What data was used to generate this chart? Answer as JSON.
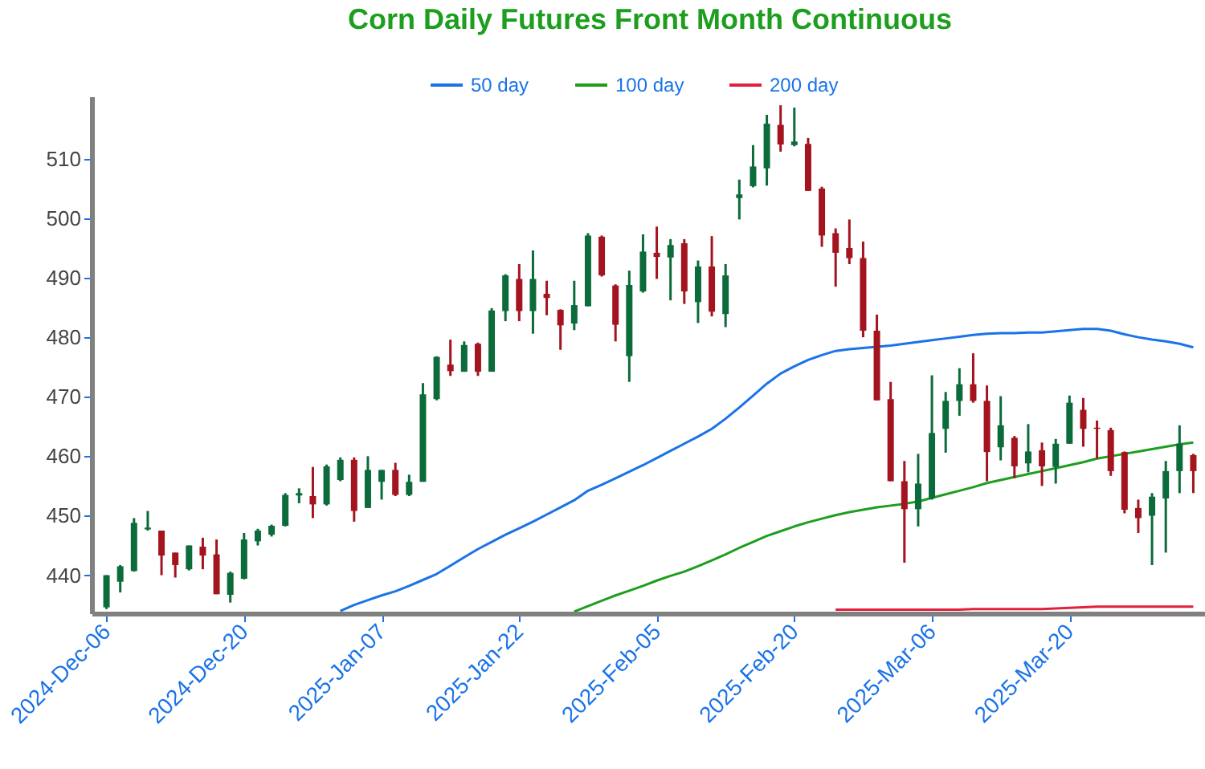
{
  "chart_data": {
    "type": "candlestick",
    "title": "Corn Daily Futures Front Month Continuous",
    "categories": [
      "2024-Dec-06",
      null,
      null,
      null,
      null,
      null,
      null,
      null,
      null,
      null,
      "2024-Dec-20",
      null,
      null,
      null,
      null,
      null,
      null,
      null,
      null,
      null,
      "2025-Jan-07",
      null,
      null,
      null,
      null,
      null,
      null,
      null,
      null,
      null,
      "2025-Jan-22",
      null,
      null,
      null,
      null,
      null,
      null,
      null,
      null,
      null,
      "2025-Feb-05",
      null,
      null,
      null,
      null,
      null,
      null,
      null,
      null,
      null,
      "2025-Feb-20",
      null,
      null,
      null,
      null,
      null,
      null,
      null,
      null,
      null,
      "2025-Mar-06",
      null,
      null,
      null,
      null,
      null,
      null,
      null,
      null,
      null,
      "2025-Mar-20",
      null,
      null,
      null,
      null,
      null,
      null,
      null,
      null,
      null
    ],
    "ohlc": [
      [
        434.6,
        440,
        434.3,
        440
      ],
      [
        438.9,
        441.7,
        437.1,
        441.5
      ],
      [
        440.7,
        449.6,
        440.6,
        448.8
      ],
      [
        447.7,
        450.8,
        447.5,
        448
      ],
      [
        447.5,
        447.5,
        440,
        443.3
      ],
      [
        443.8,
        443.8,
        439.6,
        441.7
      ],
      [
        441,
        445,
        440.8,
        445
      ],
      [
        444.8,
        446.3,
        441,
        443.3
      ],
      [
        443.5,
        446,
        436.8,
        436.8
      ],
      [
        436.7,
        440.6,
        435.4,
        440.4
      ],
      [
        439.4,
        447.1,
        439.3,
        446
      ],
      [
        445.7,
        447.8,
        445,
        447.5
      ],
      [
        446.8,
        448.5,
        446.5,
        448.3
      ],
      [
        448.3,
        453.8,
        448.2,
        453.5
      ],
      [
        453.4,
        454.6,
        452.1,
        453.8
      ],
      [
        453.3,
        458.2,
        449.6,
        451.9
      ],
      [
        451.9,
        458.6,
        451.7,
        458.3
      ],
      [
        456,
        459.8,
        455.8,
        459.4
      ],
      [
        459.4,
        459.8,
        449,
        450.8
      ],
      [
        451.3,
        460,
        451.3,
        457.7
      ],
      [
        455.7,
        457.7,
        452.7,
        457.7
      ],
      [
        457.7,
        458.9,
        453.3,
        453.5
      ],
      [
        453.5,
        456.9,
        453.3,
        455.7
      ],
      [
        455.7,
        472.3,
        455.7,
        470.4
      ],
      [
        469.6,
        476.8,
        469.4,
        476.7
      ],
      [
        475.4,
        479.6,
        473.5,
        474.3
      ],
      [
        474.2,
        479.3,
        474.2,
        478.7
      ],
      [
        478.9,
        479.1,
        473.5,
        474.2
      ],
      [
        474.2,
        484.9,
        474.2,
        484.5
      ],
      [
        484.4,
        490.6,
        482.7,
        490.4
      ],
      [
        489.8,
        492.3,
        482.7,
        484.4
      ],
      [
        484.4,
        494.6,
        480.6,
        489.8
      ],
      [
        487.3,
        489.5,
        483.7,
        486.6
      ],
      [
        484.6,
        484.7,
        477.9,
        482
      ],
      [
        482.3,
        489.5,
        481.2,
        485.4
      ],
      [
        485.2,
        497.5,
        485.2,
        497.1
      ],
      [
        496.9,
        497.1,
        490.2,
        490.4
      ],
      [
        488.7,
        488.9,
        479.3,
        482.1
      ],
      [
        476.8,
        491.2,
        472.5,
        488.8
      ],
      [
        487.7,
        497.3,
        487.5,
        494.4
      ],
      [
        494.2,
        498.6,
        489.8,
        493.5
      ],
      [
        493.4,
        496.5,
        486.2,
        495.5
      ],
      [
        495.8,
        496.5,
        485.6,
        487.7
      ],
      [
        485.9,
        492.9,
        482.4,
        491.9
      ],
      [
        491.9,
        497,
        483.5,
        484.3
      ],
      [
        483.9,
        492.3,
        481.7,
        490.4
      ],
      [
        503.4,
        506.5,
        499.8,
        504
      ],
      [
        505.4,
        512.3,
        505.2,
        508.7
      ],
      [
        508.4,
        517.4,
        505.5,
        515.9
      ],
      [
        515.7,
        519,
        511.2,
        512.4
      ],
      [
        512.3,
        518.6,
        512.1,
        512.9
      ],
      [
        512.5,
        513.5,
        504.6,
        504.6
      ],
      [
        505,
        505.3,
        495.2,
        497.1
      ],
      [
        497.5,
        498.3,
        488.5,
        494.2
      ],
      [
        495,
        499.8,
        492.3,
        493.3
      ],
      [
        493.3,
        496.1,
        480,
        481.1
      ],
      [
        481.1,
        483.8,
        469.4,
        469.4
      ],
      [
        469.6,
        472.5,
        455.8,
        455.8
      ],
      [
        455.8,
        459.2,
        442.1,
        451.1
      ],
      [
        451.1,
        460.4,
        448.2,
        455.4
      ],
      [
        452.9,
        473.6,
        452.7,
        463.9
      ],
      [
        464.6,
        470.8,
        460.6,
        469.3
      ],
      [
        469.3,
        474.8,
        466.8,
        472.1
      ],
      [
        472.1,
        477.3,
        469,
        469.3
      ],
      [
        469.3,
        471.9,
        455.8,
        460.7
      ],
      [
        461.5,
        470.1,
        459.3,
        465.2
      ],
      [
        463.1,
        463.4,
        456.3,
        458.3
      ],
      [
        458.8,
        465.4,
        457.3,
        460.8
      ],
      [
        461,
        462.3,
        455,
        458.3
      ],
      [
        458.2,
        462.9,
        455.4,
        462.1
      ],
      [
        462.1,
        470.2,
        462.1,
        469
      ],
      [
        467.8,
        469.8,
        461.6,
        464.6
      ],
      [
        464.8,
        466,
        459.6,
        464.6
      ],
      [
        464.4,
        464.8,
        456.7,
        457.5
      ],
      [
        460.7,
        460.8,
        450.4,
        451
      ],
      [
        451.3,
        452.7,
        447.1,
        449.6
      ],
      [
        450,
        453.8,
        441.7,
        453.2
      ],
      [
        452.9,
        459.2,
        443.8,
        457.5
      ],
      [
        457.5,
        465.2,
        453.8,
        462.1
      ],
      [
        460.2,
        460.4,
        453.8,
        457.5
      ]
    ],
    "colors": [
      "#0b6b3a",
      "#0b6b3a",
      "#0b6b3a",
      "#0b6b3a",
      "#a3141f",
      "#a3141f",
      "#0b6b3a",
      "#a3141f",
      "#a3141f",
      "#0b6b3a",
      "#0b6b3a",
      "#0b6b3a",
      "#0b6b3a",
      "#0b6b3a",
      "#0b6b3a",
      "#a3141f",
      "#0b6b3a",
      "#0b6b3a",
      "#a3141f",
      "#0b6b3a",
      "#0b6b3a",
      "#a3141f",
      "#0b6b3a",
      "#0b6b3a",
      "#0b6b3a",
      "#a3141f",
      "#0b6b3a",
      "#a3141f",
      "#0b6b3a",
      "#0b6b3a",
      "#a3141f",
      "#0b6b3a",
      "#a3141f",
      "#a3141f",
      "#0b6b3a",
      "#0b6b3a",
      "#a3141f",
      "#a3141f",
      "#0b6b3a",
      "#0b6b3a",
      "#a3141f",
      "#0b6b3a",
      "#a3141f",
      "#0b6b3a",
      "#a3141f",
      "#0b6b3a",
      "#0b6b3a",
      "#0b6b3a",
      "#0b6b3a",
      "#a3141f",
      "#0b6b3a",
      "#a3141f",
      "#a3141f",
      "#a3141f",
      "#a3141f",
      "#a3141f",
      "#a3141f",
      "#a3141f",
      "#a3141f",
      "#0b6b3a",
      "#0b6b3a",
      "#0b6b3a",
      "#0b6b3a",
      "#a3141f",
      "#a3141f",
      "#0b6b3a",
      "#a3141f",
      "#0b6b3a",
      "#a3141f",
      "#0b6b3a",
      "#0b6b3a",
      "#a3141f",
      "#a3141f",
      "#a3141f",
      "#a3141f",
      "#a3141f",
      "#0b6b3a",
      "#0b6b3a",
      "#0b6b3a",
      "#a3141f"
    ],
    "series": [
      {
        "name": "50 day",
        "type": "line",
        "color": "#1a73e8",
        "values": [
          null,
          null,
          null,
          null,
          null,
          null,
          null,
          null,
          null,
          null,
          null,
          null,
          null,
          null,
          null,
          null,
          null,
          434.0,
          435.0,
          435.8,
          436.6,
          437.3,
          438.2,
          439.2,
          440.2,
          441.6,
          443.0,
          444.4,
          445.6,
          446.8,
          447.9,
          449.0,
          450.2,
          451.4,
          452.6,
          454.2,
          455.2,
          456.3,
          457.4,
          458.5,
          459.7,
          460.9,
          462.1,
          463.3,
          464.6,
          466.3,
          468.2,
          470.2,
          472.2,
          473.9,
          475.1,
          476.2,
          477.0,
          477.7,
          478.0,
          478.2,
          478.4,
          478.6,
          478.9,
          479.2,
          479.5,
          479.8,
          480.1,
          480.4,
          480.6,
          480.7,
          480.7,
          480.8,
          480.8,
          481.0,
          481.2,
          481.4,
          481.4,
          481.1,
          480.5,
          480.0,
          479.6,
          479.3,
          478.9,
          478.3
        ]
      },
      {
        "name": "100 day",
        "type": "line",
        "color": "#1e9e1e",
        "values": [
          null,
          null,
          null,
          null,
          null,
          null,
          null,
          null,
          null,
          null,
          null,
          null,
          null,
          null,
          null,
          null,
          null,
          null,
          null,
          null,
          null,
          null,
          null,
          null,
          null,
          null,
          null,
          null,
          null,
          null,
          null,
          null,
          null,
          null,
          433.9,
          434.8,
          435.7,
          436.6,
          437.4,
          438.2,
          439.1,
          439.9,
          440.6,
          441.5,
          442.5,
          443.5,
          444.6,
          445.6,
          446.6,
          447.4,
          448.2,
          448.9,
          449.5,
          450.1,
          450.6,
          451.0,
          451.4,
          451.7,
          452.0,
          452.4,
          453.0,
          453.6,
          454.2,
          454.8,
          455.5,
          456.0,
          456.5,
          457.0,
          457.5,
          458.0,
          458.5,
          459.0,
          459.6,
          460.0,
          460.4,
          460.8,
          461.2,
          461.6,
          462.0,
          462.3
        ]
      },
      {
        "name": "200 day",
        "type": "line",
        "color": "#e0203c",
        "values": [
          null,
          null,
          null,
          null,
          null,
          null,
          null,
          null,
          null,
          null,
          null,
          null,
          null,
          null,
          null,
          null,
          null,
          null,
          null,
          null,
          null,
          null,
          null,
          null,
          null,
          null,
          null,
          null,
          null,
          null,
          null,
          null,
          null,
          null,
          null,
          null,
          null,
          null,
          null,
          null,
          null,
          null,
          null,
          null,
          null,
          null,
          null,
          null,
          null,
          null,
          null,
          null,
          null,
          434.2,
          434.2,
          434.2,
          434.2,
          434.2,
          434.2,
          434.2,
          434.2,
          434.2,
          434.2,
          434.3,
          434.3,
          434.3,
          434.3,
          434.3,
          434.3,
          434.4,
          434.5,
          434.6,
          434.7,
          434.7,
          434.7,
          434.7,
          434.7,
          434.7,
          434.7,
          434.7
        ]
      }
    ],
    "ylim": [
      433.6,
      520.5
    ],
    "yticks": [
      440,
      450,
      460,
      470,
      480,
      490,
      500,
      510
    ],
    "grid": false,
    "legend": "top",
    "marker": "none",
    "line_style": "solid"
  }
}
